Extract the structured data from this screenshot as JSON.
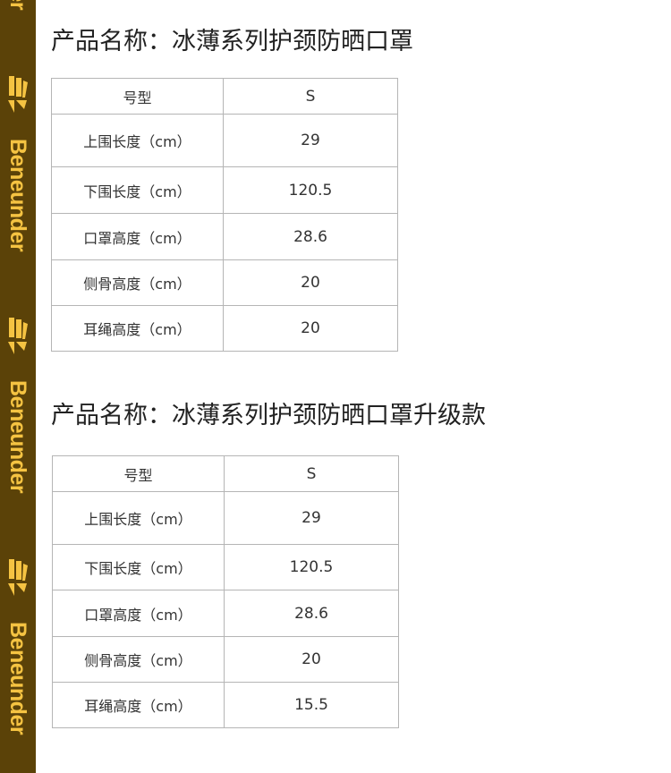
{
  "brand": {
    "name": "Beneunder",
    "color": "#f5c342",
    "background": "#5b4208"
  },
  "sections": [
    {
      "title": "产品名称：冰薄系列护颈防晒口罩",
      "header": [
        "号型",
        "S"
      ],
      "rows": [
        [
          "上围长度（cm）",
          "29"
        ],
        [
          "下围长度（cm）",
          "120.5"
        ],
        [
          "口罩高度（cm）",
          "28.6"
        ],
        [
          "侧骨高度（cm）",
          "20"
        ],
        [
          "耳绳高度（cm）",
          "20"
        ]
      ]
    },
    {
      "title": "产品名称：冰薄系列护颈防晒口罩升级款",
      "header": [
        "号型",
        "S"
      ],
      "rows": [
        [
          "上围长度（cm）",
          "29"
        ],
        [
          "下围长度（cm）",
          "120.5"
        ],
        [
          "口罩高度（cm）",
          "28.6"
        ],
        [
          "侧骨高度（cm）",
          "20"
        ],
        [
          "耳绳高度（cm）",
          "15.5"
        ]
      ]
    }
  ]
}
